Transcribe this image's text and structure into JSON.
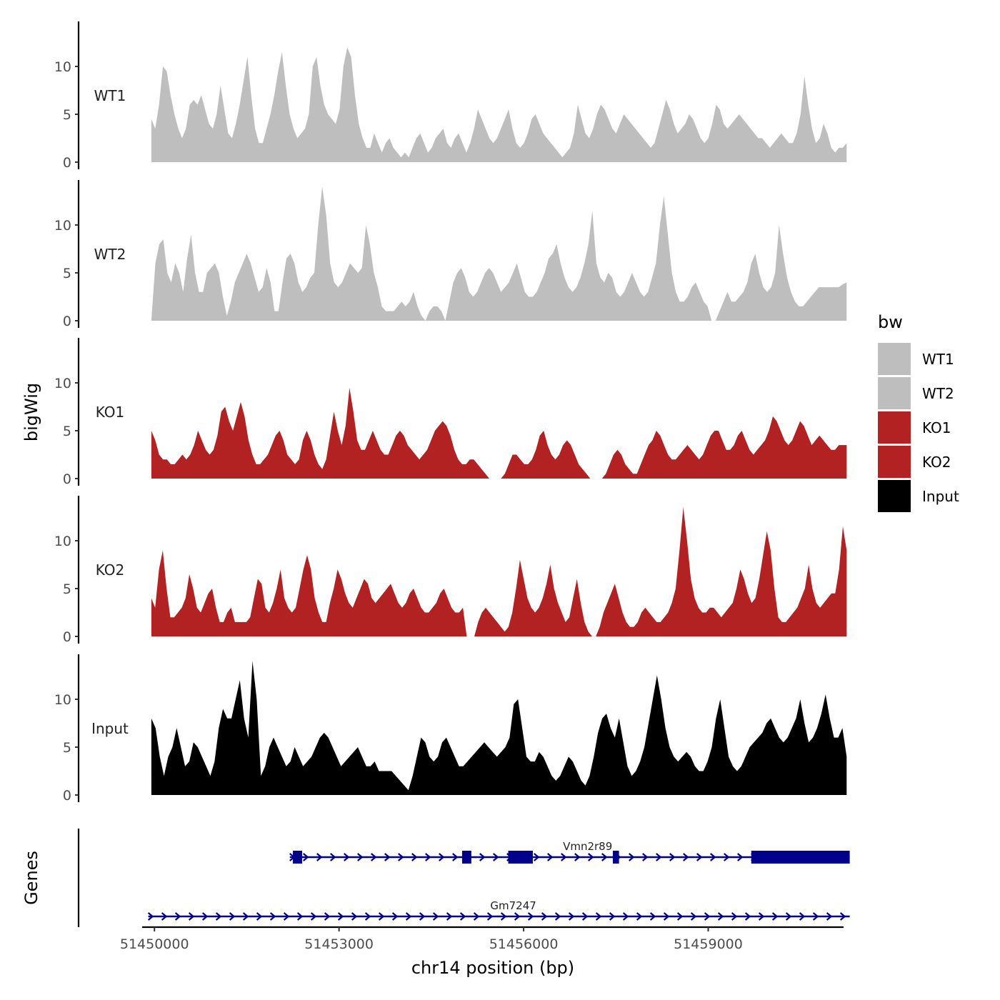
{
  "chart_data": {
    "type": "area",
    "title": "",
    "ylabel": "bigWig",
    "xlabel": "chr14 position (bp)",
    "genes_track_label": "Genes",
    "chromosome": "chr14",
    "xlim": [
      49800,
      61200
    ],
    "region": [
      49950,
      61250
    ],
    "ylim": [
      0,
      14.5
    ],
    "y_ticks": [
      0,
      5,
      10
    ],
    "x_ticks": [
      51450000,
      51453000,
      51456000,
      51459000
    ],
    "x_tick_labels": [
      "51450000",
      "51453000",
      "51456000",
      "51459000"
    ],
    "x_offset": 51400000,
    "legend": {
      "title": "bw",
      "entries": [
        {
          "label": "WT1",
          "color": "#bebebe"
        },
        {
          "label": "WT2",
          "color": "#bebebe"
        },
        {
          "label": "KO1",
          "color": "#b22222"
        },
        {
          "label": "KO2",
          "color": "#b22222"
        },
        {
          "label": "Input",
          "color": "#000000"
        }
      ]
    },
    "series": [
      {
        "name": "WT1",
        "color": "#bebebe",
        "values": [
          4.5,
          3.5,
          6,
          10,
          9.5,
          7,
          5,
          3.5,
          2.5,
          3.5,
          6,
          6.5,
          6,
          7,
          5.5,
          4,
          3.5,
          5,
          8,
          5.5,
          3,
          2.5,
          4,
          6,
          8.5,
          11,
          7,
          3.5,
          2,
          2,
          3.5,
          5,
          7,
          9.5,
          11.5,
          8,
          5,
          3.5,
          2.5,
          3,
          3.5,
          5,
          10,
          11,
          8,
          6,
          5,
          4.5,
          4,
          5.5,
          10,
          12,
          11,
          7,
          4,
          2.5,
          1.5,
          1.5,
          3,
          2,
          1,
          2,
          2.5,
          1.5,
          1,
          0.5,
          1,
          0.5,
          1.5,
          2.5,
          3,
          2,
          1,
          1.5,
          2.5,
          3,
          3.5,
          2,
          1.5,
          2.5,
          3,
          2,
          1,
          2,
          3.5,
          5.5,
          4.5,
          3.5,
          2.5,
          2,
          2.5,
          3.5,
          4.5,
          5.5,
          3.5,
          2,
          1.5,
          2,
          3,
          4.5,
          5,
          4,
          3,
          2.5,
          2,
          1.5,
          1,
          0.5,
          1,
          1.5,
          3,
          6,
          4.5,
          3,
          2.5,
          3.5,
          5,
          6,
          5.5,
          4.5,
          3.5,
          3,
          4,
          5,
          4.5,
          4,
          3.5,
          3,
          2.5,
          2,
          1.5,
          2,
          3.5,
          5,
          6.5,
          5.5,
          4,
          3,
          3.5,
          4,
          5,
          4.5,
          3.5,
          2.5,
          2,
          2.5,
          4,
          6,
          5.5,
          4,
          3.5,
          4,
          4.5,
          5,
          4.5,
          4,
          3.5,
          3,
          2.5,
          2.5,
          2,
          1.5,
          2,
          2.5,
          3,
          2.5,
          2,
          2,
          3,
          5,
          9,
          6,
          3.5,
          2,
          2.5,
          4,
          3,
          1.5,
          1,
          1.5,
          1.5,
          2
        ]
      },
      {
        "name": "WT2",
        "color": "#bebebe",
        "values": [
          0,
          6,
          8,
          8.5,
          5,
          4,
          6,
          5,
          3,
          6.5,
          9,
          5,
          3,
          3,
          5,
          5.5,
          6,
          5,
          2.5,
          0.5,
          2,
          4,
          5,
          6,
          7,
          6,
          4.5,
          3,
          3.5,
          5.5,
          4,
          1,
          1,
          4,
          6.5,
          7,
          6,
          4,
          3,
          3.5,
          4.5,
          5,
          10,
          14,
          11,
          6,
          4,
          3.5,
          4,
          5,
          6,
          5.5,
          5,
          5.5,
          10,
          8,
          5,
          3.5,
          1.5,
          1,
          1,
          1,
          1.5,
          2,
          1.5,
          2,
          3,
          1.5,
          0.5,
          0,
          1,
          1.5,
          1.5,
          1,
          0,
          2,
          4,
          5,
          5.5,
          4.5,
          3,
          2.5,
          3,
          4,
          5,
          5.5,
          5,
          4,
          3,
          3.5,
          4,
          5,
          6,
          4.5,
          3,
          2.5,
          2.5,
          3,
          4,
          5,
          6.5,
          7,
          8,
          6,
          4.5,
          3.5,
          3,
          3.5,
          4.5,
          6,
          8,
          11.5,
          6,
          4.5,
          4,
          5,
          4.5,
          3,
          2.5,
          3,
          4,
          5,
          4,
          3,
          2.5,
          3,
          4.5,
          6,
          10,
          13,
          9,
          5,
          3,
          2,
          2,
          2.5,
          3.5,
          4,
          3,
          2,
          1.5,
          0,
          0,
          1,
          2,
          3,
          2,
          2,
          2.5,
          3,
          4,
          6,
          7,
          5,
          3.5,
          3,
          3.5,
          5,
          10,
          7,
          4.5,
          3,
          2,
          1.5,
          1.5,
          2,
          2.5,
          3,
          3.5,
          3.5,
          3.5,
          3.5,
          3.5,
          3.5,
          3.8,
          4
        ]
      },
      {
        "name": "KO1",
        "color": "#b22222",
        "values": [
          5,
          4,
          2.5,
          2,
          2,
          1.5,
          1.5,
          2,
          2.5,
          2,
          2.5,
          3.5,
          5,
          4,
          3,
          2.5,
          3,
          4.5,
          7,
          7.5,
          6,
          5,
          6.5,
          8,
          6.5,
          4,
          2.5,
          1.5,
          1.5,
          2,
          2.5,
          3.5,
          4.5,
          5,
          4,
          2.5,
          2,
          1.5,
          2,
          4,
          5,
          4,
          2.5,
          1.5,
          1,
          2,
          4.5,
          7,
          5,
          3.5,
          5.5,
          9.5,
          7,
          4,
          3,
          3,
          4,
          5,
          4,
          3,
          2.5,
          2.5,
          3.5,
          4.5,
          5,
          4.5,
          3.5,
          3,
          2.5,
          2,
          2.5,
          3,
          4,
          5,
          5.5,
          6,
          5.5,
          4.5,
          3,
          2,
          1.5,
          1.5,
          2,
          2,
          1.5,
          1,
          0.5,
          0,
          0,
          0,
          0,
          0.5,
          1.5,
          2.5,
          2.5,
          2,
          1.5,
          1.5,
          2,
          3,
          4.5,
          5,
          3.5,
          2.5,
          2,
          2.5,
          3.5,
          4,
          3.5,
          2.5,
          1.5,
          1,
          0.5,
          0,
          0,
          0,
          0,
          0.5,
          1.5,
          2.5,
          3,
          2.5,
          1.5,
          1,
          0.5,
          0.5,
          1.5,
          2.5,
          3.5,
          4,
          5,
          4.5,
          3.5,
          2.5,
          2,
          2,
          2.5,
          3,
          3.5,
          3,
          2.5,
          2,
          2.5,
          3.5,
          4.5,
          5,
          5,
          4,
          3,
          3,
          3.5,
          4.5,
          5,
          4,
          3,
          2.5,
          3,
          3.5,
          4,
          5,
          6.5,
          6,
          5,
          4,
          3.5,
          4,
          5,
          6,
          5.5,
          4.5,
          3.5,
          4,
          4.5,
          4,
          3.5,
          3,
          3,
          3.5,
          3.5,
          3.5
        ]
      },
      {
        "name": "KO2",
        "color": "#b22222",
        "values": [
          4,
          3,
          7,
          9,
          5,
          2,
          2,
          2.5,
          3,
          4,
          6.5,
          5,
          3,
          2.5,
          3.5,
          4.5,
          5,
          3,
          1.5,
          1.5,
          2.5,
          3,
          1.5,
          1.5,
          1.5,
          1.5,
          2,
          4,
          6,
          5.5,
          3,
          2.5,
          3.5,
          5,
          7,
          4,
          3,
          2.5,
          3,
          5,
          7,
          8.5,
          7,
          4,
          2.5,
          1.5,
          1.5,
          3.5,
          5,
          7,
          6,
          4.5,
          3.5,
          3,
          4,
          5,
          6,
          5.5,
          4,
          3.5,
          4,
          4.5,
          5,
          5.5,
          4.5,
          3.5,
          3,
          3.5,
          4.5,
          5,
          4,
          3,
          2.5,
          2.5,
          3,
          3.5,
          4.5,
          5,
          4,
          3,
          2.5,
          2.5,
          3,
          0,
          0,
          0,
          1.5,
          2.5,
          3,
          2.5,
          2,
          1.5,
          1,
          0.5,
          1,
          2.5,
          5,
          8,
          6,
          4,
          3,
          2.5,
          3,
          4,
          5.5,
          7.5,
          5,
          3.5,
          2.5,
          1.5,
          2,
          4,
          6,
          3.5,
          1.5,
          0.5,
          0,
          0,
          1,
          2.5,
          3.5,
          4.5,
          5.5,
          4,
          2.5,
          1.5,
          1,
          1,
          1.5,
          2.5,
          3,
          2.5,
          2,
          1.5,
          1.5,
          2,
          2.5,
          3.5,
          5,
          9,
          13.5,
          10,
          6,
          4,
          3,
          2.5,
          2.5,
          3,
          3,
          2.5,
          2,
          2.5,
          3,
          3.5,
          5,
          7,
          6,
          4.5,
          3.5,
          4,
          6,
          8.5,
          11,
          9,
          5,
          2,
          1.5,
          1.5,
          2,
          2.5,
          3,
          4,
          5,
          7.5,
          5,
          3.5,
          3,
          3.5,
          4,
          4.5,
          4.5,
          7,
          11.5,
          9
        ]
      },
      {
        "name": "Input",
        "color": "#000000",
        "values": [
          8,
          7,
          4,
          2,
          4,
          5,
          7,
          5,
          3,
          3.5,
          5.5,
          5,
          4,
          3,
          2,
          3.5,
          7,
          9,
          8,
          8,
          10,
          12,
          8,
          6,
          14,
          10,
          2,
          3,
          5,
          6,
          5,
          4,
          3,
          3.5,
          5,
          4,
          3,
          3.5,
          4,
          5,
          6,
          6.5,
          6,
          5,
          4,
          3,
          3.5,
          4,
          4.5,
          5,
          4,
          3,
          3,
          3.5,
          2.5,
          2.5,
          2.5,
          2.5,
          2,
          1.5,
          1,
          0.5,
          2,
          4,
          6,
          5.5,
          4,
          3.5,
          4,
          5.5,
          6,
          5,
          4,
          3,
          3,
          3.5,
          4,
          4.5,
          5,
          5.5,
          5,
          4.5,
          4,
          4.5,
          5,
          6,
          9.5,
          10,
          7,
          4,
          3.5,
          3.5,
          4.5,
          4,
          3,
          2,
          1.5,
          2,
          3,
          4,
          3.5,
          2.5,
          1.5,
          1,
          2,
          4,
          6.5,
          8,
          8.5,
          7,
          6,
          8,
          5.5,
          3,
          2,
          2.5,
          3.5,
          5,
          7.5,
          10,
          12.5,
          10,
          7,
          5,
          4,
          3.5,
          4,
          4.5,
          4,
          3,
          2.5,
          2.5,
          3.5,
          5,
          8,
          10,
          7,
          4,
          3,
          2.5,
          3,
          4,
          5,
          5.5,
          6,
          6.5,
          7.5,
          8,
          7,
          6,
          5.5,
          6,
          7,
          8,
          10,
          7.5,
          5.5,
          6,
          7,
          8.5,
          10.5,
          8,
          6,
          6,
          7,
          4
        ]
      }
    ],
    "genes": [
      {
        "name": "Vmn2r89",
        "start": 52200,
        "end": 61300,
        "strand": "+",
        "exons": [
          [
            52250,
            52400
          ],
          [
            55000,
            55150
          ],
          [
            55750,
            56150
          ],
          [
            57450,
            57550
          ],
          [
            59700,
            61300
          ]
        ]
      },
      {
        "name": "Gm7247",
        "start": 49900,
        "end": 61300,
        "strand": "+",
        "exons": []
      }
    ]
  }
}
